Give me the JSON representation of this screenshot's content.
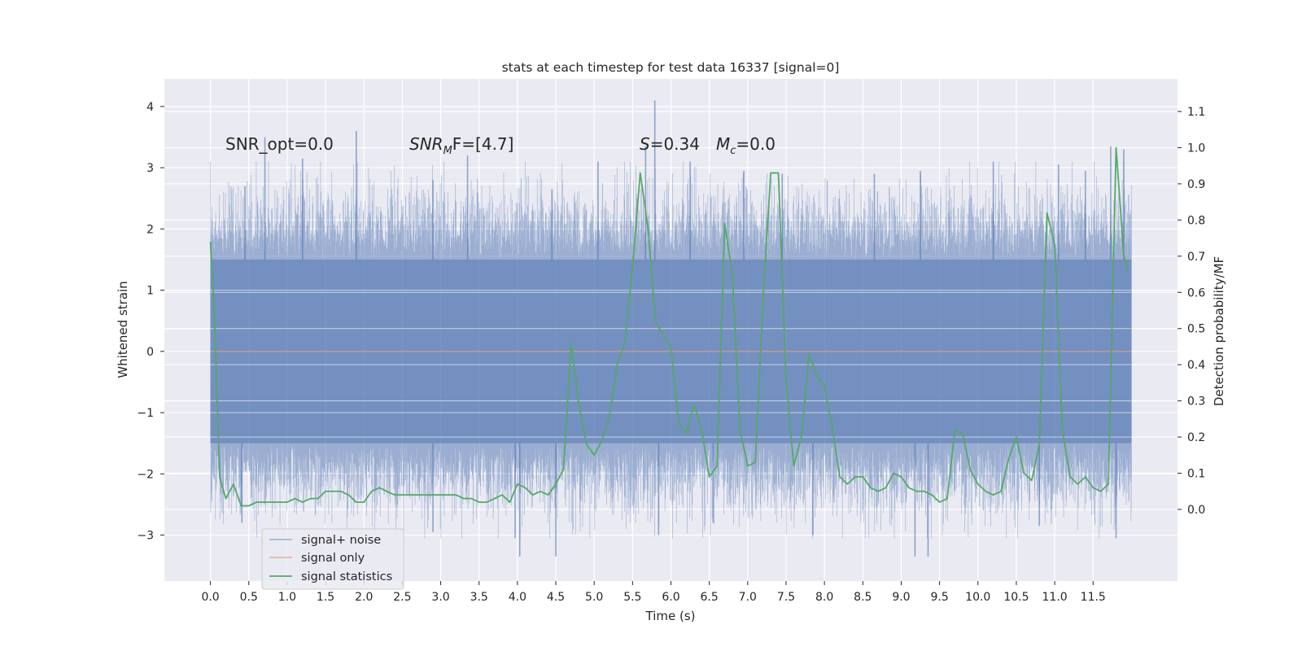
{
  "chart_data": {
    "type": "line",
    "title": "stats at each timestep for test data 16337 [signal=0]",
    "xlabel": "Time (s)",
    "ylabel": "Whitened strain",
    "ylabel_right": "Detection probability/MF",
    "xlim": [
      -0.6,
      12.6
    ],
    "ylim": [
      -3.75,
      4.45
    ],
    "ylim_right": [
      -0.198,
      1.19
    ],
    "x_ticks": [
      "0.0",
      "0.5",
      "1.0",
      "1.5",
      "2.0",
      "2.5",
      "3.0",
      "3.5",
      "4.0",
      "4.5",
      "5.0",
      "5.5",
      "6.0",
      "6.5",
      "7.0",
      "7.5",
      "8.0",
      "8.5",
      "9.0",
      "9.5",
      "10.0",
      "10.5",
      "11.0",
      "11.5"
    ],
    "y_ticks": [
      "4",
      "3",
      "2",
      "1",
      "0",
      "−1",
      "−2",
      "−3"
    ],
    "y_ticks_right": [
      "1.1",
      "1.0",
      "0.9",
      "0.8",
      "0.7",
      "0.6",
      "0.5",
      "0.4",
      "0.3",
      "0.2",
      "0.1",
      "0.0"
    ],
    "grid": true,
    "legend_position": "lower-left",
    "annotations": {
      "snr_opt": "SNR_opt=0.0",
      "snr_mf_base": "SNR",
      "snr_mf_sub": "M",
      "snr_mf_rest": "F=[4.7]",
      "s_var": "S",
      "s_val": "=0.34",
      "mc_var": "M",
      "mc_sub": "c",
      "mc_val": "=0.0"
    },
    "series": [
      {
        "name": "signal+ noise",
        "color": "#4c72b0",
        "axis": "left",
        "x_range": [
          0.0,
          12.0
        ],
        "band_core": [
          -1.5,
          1.5
        ],
        "peaks": [
          [
            0.71,
            3.5
          ],
          [
            1.9,
            3.6
          ],
          [
            5.79,
            4.1
          ],
          [
            5.67,
            3.35
          ],
          [
            11.73,
            3.35
          ],
          [
            11.9,
            3.3
          ],
          [
            0.45,
            2.7
          ],
          [
            1.2,
            3.15
          ],
          [
            2.9,
            2.8
          ],
          [
            3.35,
            3.2
          ],
          [
            4.45,
            2.65
          ],
          [
            5.05,
            3.1
          ],
          [
            6.25,
            3.1
          ],
          [
            6.95,
            2.95
          ],
          [
            7.45,
            2.9
          ],
          [
            8.65,
            2.9
          ],
          [
            9.25,
            2.95
          ],
          [
            10.2,
            3.1
          ],
          [
            11.05,
            3.05
          ],
          [
            11.4,
            2.95
          ],
          [
            5.84,
            -3.0
          ],
          [
            4.03,
            -3.35
          ],
          [
            4.5,
            -3.35
          ],
          [
            9.18,
            -3.35
          ],
          [
            9.35,
            -3.35
          ],
          [
            11.8,
            -3.05
          ],
          [
            7.85,
            -3.0
          ],
          [
            10.8,
            -2.85
          ],
          [
            0.41,
            -2.8
          ],
          [
            3.97,
            -3.05
          ],
          [
            2.9,
            -2.95
          ],
          [
            6.55,
            -2.8
          ]
        ]
      },
      {
        "name": "signal only",
        "color": "#dd8452",
        "axis": "left",
        "x": [
          0.0,
          12.0
        ],
        "y": [
          0.0,
          0.0
        ]
      },
      {
        "name": "signal statistics",
        "color": "#55a868",
        "axis": "right",
        "x": [
          0.0,
          0.05,
          0.12,
          0.2,
          0.3,
          0.4,
          0.5,
          0.6,
          0.7,
          0.8,
          0.9,
          1.0,
          1.1,
          1.2,
          1.3,
          1.4,
          1.5,
          1.6,
          1.7,
          1.8,
          1.9,
          2.0,
          2.1,
          2.2,
          2.3,
          2.4,
          2.5,
          2.6,
          2.7,
          2.8,
          2.9,
          3.0,
          3.1,
          3.2,
          3.3,
          3.4,
          3.5,
          3.6,
          3.7,
          3.8,
          3.9,
          4.0,
          4.1,
          4.2,
          4.3,
          4.4,
          4.5,
          4.6,
          4.7,
          4.8,
          4.9,
          5.0,
          5.1,
          5.2,
          5.3,
          5.4,
          5.5,
          5.6,
          5.7,
          5.8,
          5.9,
          6.0,
          6.1,
          6.2,
          6.3,
          6.4,
          6.5,
          6.6,
          6.7,
          6.8,
          6.9,
          7.0,
          7.1,
          7.2,
          7.3,
          7.4,
          7.5,
          7.6,
          7.7,
          7.8,
          7.9,
          8.0,
          8.1,
          8.2,
          8.3,
          8.4,
          8.5,
          8.6,
          8.7,
          8.8,
          8.9,
          9.0,
          9.1,
          9.2,
          9.3,
          9.4,
          9.5,
          9.6,
          9.7,
          9.8,
          9.9,
          10.0,
          10.1,
          10.2,
          10.3,
          10.4,
          10.5,
          10.6,
          10.7,
          10.8,
          10.9,
          11.0,
          11.1,
          11.2,
          11.3,
          11.4,
          11.5,
          11.6,
          11.7,
          11.8,
          11.9,
          11.95
        ],
        "y": [
          0.74,
          0.55,
          0.09,
          0.03,
          0.07,
          0.01,
          0.01,
          0.02,
          0.02,
          0.02,
          0.02,
          0.02,
          0.03,
          0.02,
          0.03,
          0.03,
          0.05,
          0.05,
          0.05,
          0.04,
          0.02,
          0.02,
          0.05,
          0.06,
          0.05,
          0.04,
          0.04,
          0.04,
          0.04,
          0.04,
          0.04,
          0.04,
          0.04,
          0.04,
          0.03,
          0.03,
          0.02,
          0.02,
          0.03,
          0.04,
          0.02,
          0.07,
          0.06,
          0.04,
          0.05,
          0.04,
          0.07,
          0.11,
          0.46,
          0.29,
          0.18,
          0.15,
          0.19,
          0.26,
          0.4,
          0.46,
          0.67,
          0.93,
          0.78,
          0.52,
          0.48,
          0.45,
          0.24,
          0.21,
          0.29,
          0.22,
          0.09,
          0.12,
          0.79,
          0.65,
          0.22,
          0.12,
          0.13,
          0.58,
          0.93,
          0.93,
          0.36,
          0.12,
          0.2,
          0.43,
          0.37,
          0.34,
          0.23,
          0.09,
          0.07,
          0.09,
          0.09,
          0.06,
          0.05,
          0.06,
          0.1,
          0.09,
          0.06,
          0.05,
          0.05,
          0.04,
          0.02,
          0.03,
          0.22,
          0.21,
          0.11,
          0.07,
          0.05,
          0.04,
          0.05,
          0.14,
          0.2,
          0.1,
          0.08,
          0.18,
          0.82,
          0.73,
          0.22,
          0.09,
          0.07,
          0.09,
          0.06,
          0.05,
          0.07,
          1.0,
          0.7,
          0.66
        ]
      }
    ]
  }
}
